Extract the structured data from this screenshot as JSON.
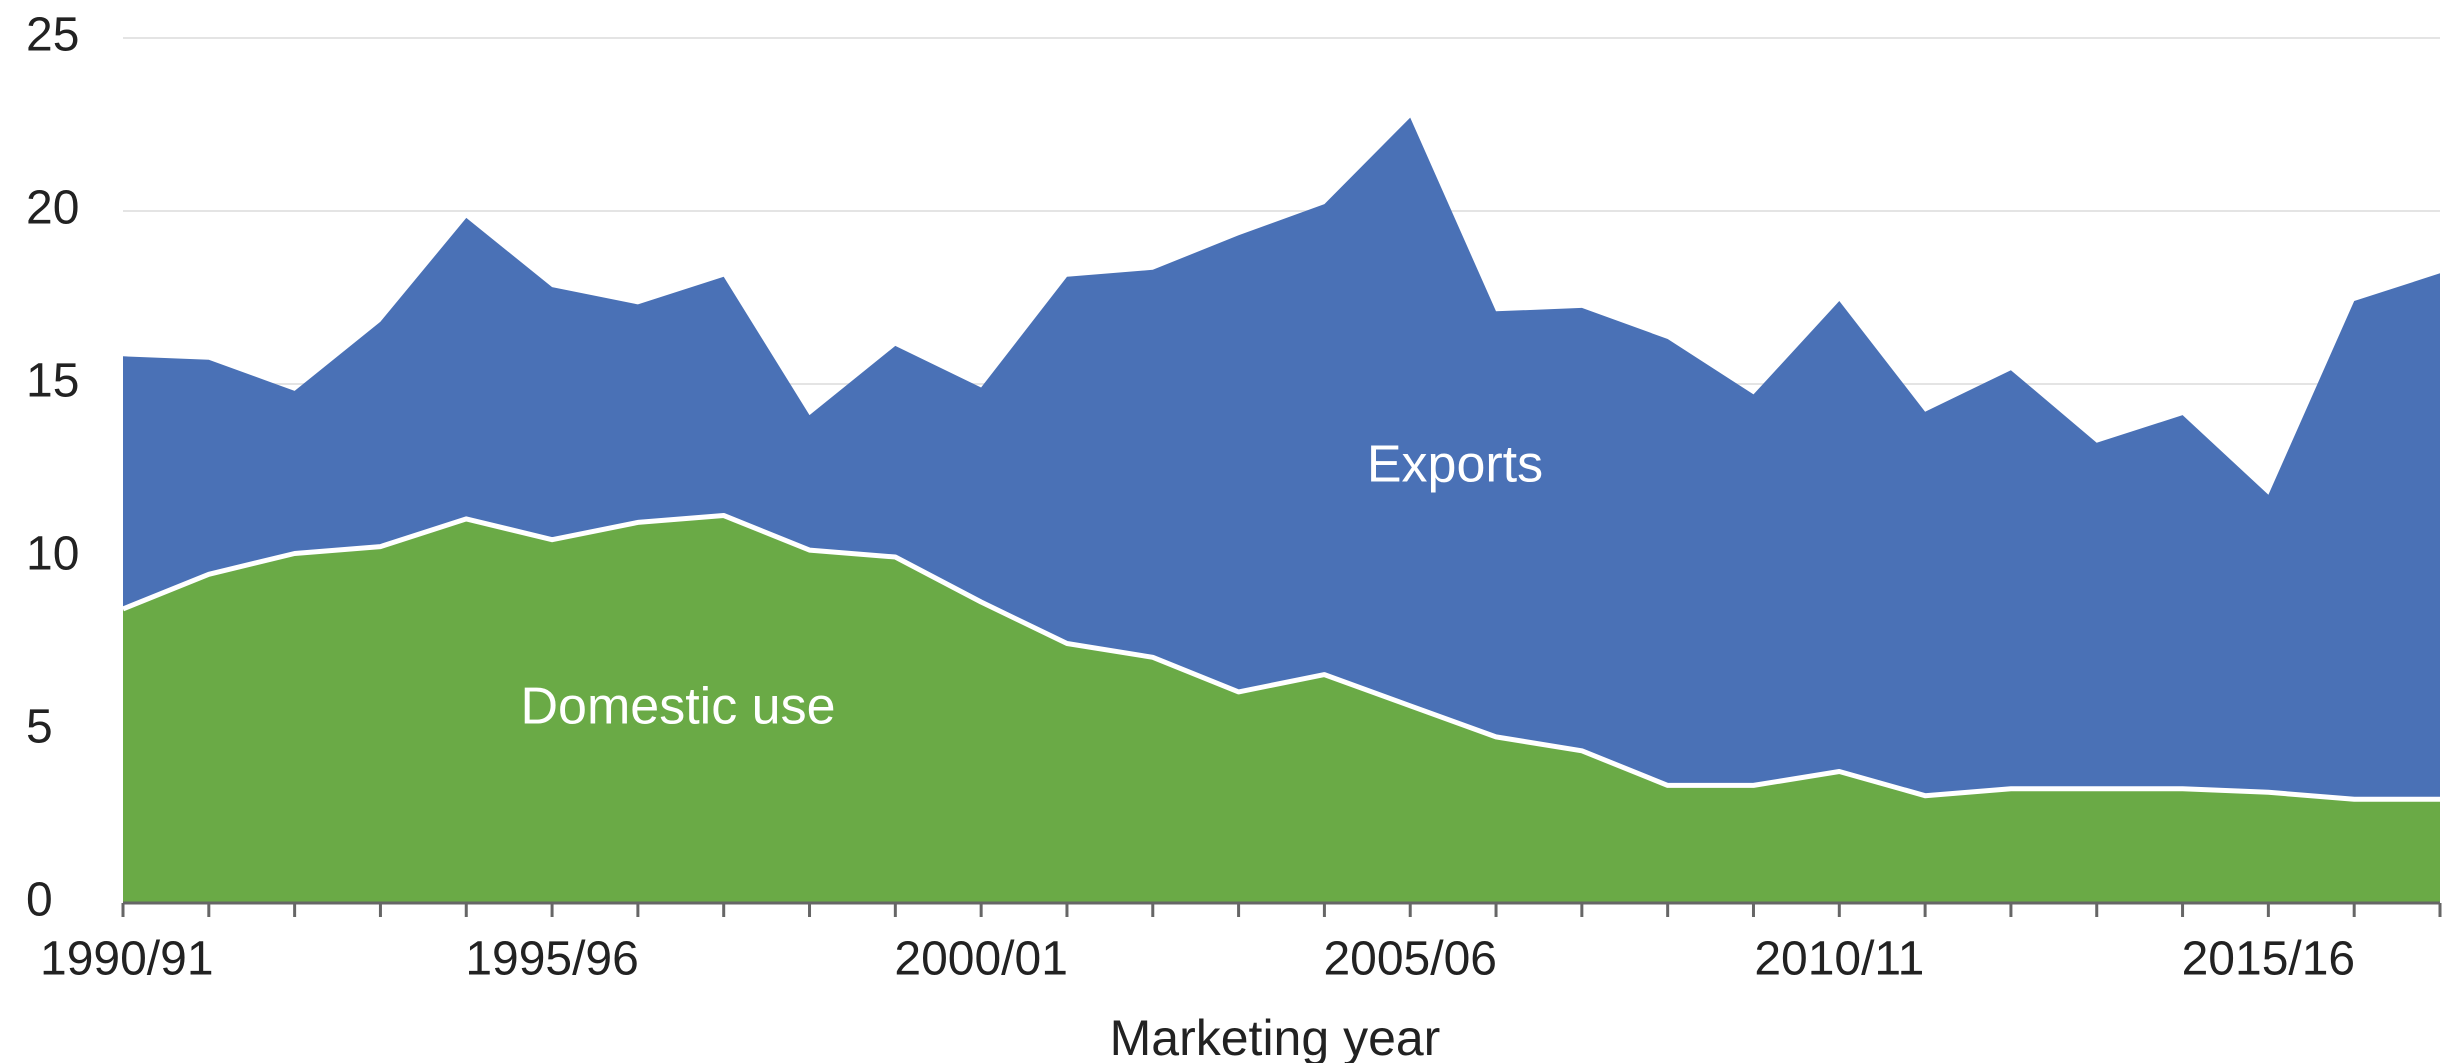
{
  "chart_data": {
    "type": "area",
    "stacked": true,
    "x": [
      "1990/91",
      "1991/92",
      "1992/93",
      "1993/94",
      "1994/95",
      "1995/96",
      "1996/97",
      "1997/98",
      "1998/99",
      "1999/00",
      "2000/01",
      "2001/02",
      "2002/03",
      "2003/04",
      "2004/05",
      "2005/06",
      "2006/07",
      "2007/08",
      "2008/09",
      "2009/10",
      "2010/11",
      "2011/12",
      "2012/13",
      "2013/14",
      "2014/15",
      "2015/16",
      "2016/17",
      "2017/18"
    ],
    "x_tick_labels": [
      "1990/91",
      "1995/96",
      "2000/01",
      "2005/06",
      "2010/11",
      "2015/16"
    ],
    "y_ticks": [
      "0",
      "5",
      "10",
      "15",
      "20",
      "25"
    ],
    "ylim": [
      0,
      25
    ],
    "xlabel": "Marketing year",
    "ylabel": "",
    "title": "",
    "grid": true,
    "series": [
      {
        "name": "Domestic use",
        "color": "#6aaa46",
        "values": [
          8.5,
          9.5,
          10.1,
          10.3,
          11.1,
          10.5,
          11.0,
          11.2,
          10.2,
          10.0,
          8.7,
          7.5,
          7.1,
          6.1,
          6.6,
          5.7,
          4.8,
          4.4,
          3.4,
          3.4,
          3.8,
          3.1,
          3.3,
          3.3,
          3.3,
          3.2,
          3.0,
          3.0
        ]
      },
      {
        "name": "Exports",
        "color": "#4a71b6",
        "values": [
          7.3,
          6.2,
          4.7,
          6.5,
          8.7,
          7.3,
          6.3,
          6.9,
          3.9,
          6.1,
          6.2,
          10.6,
          11.2,
          13.2,
          13.6,
          17.0,
          12.3,
          12.8,
          12.9,
          11.3,
          13.6,
          11.1,
          12.1,
          10.0,
          10.8,
          8.6,
          14.4,
          15.2
        ]
      }
    ]
  }
}
